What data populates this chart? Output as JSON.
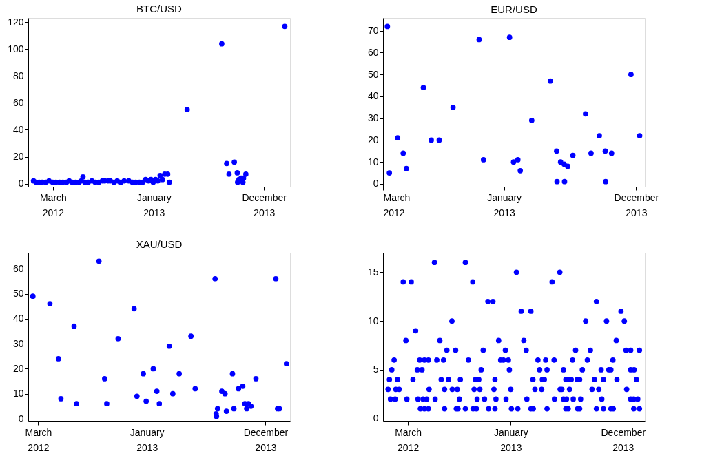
{
  "chart_data": [
    {
      "type": "scatter",
      "title": "BTC/USD",
      "marker": "circle",
      "grid": false,
      "xlim": [
        "2011-12-17",
        "2014-02-18"
      ],
      "ylim": [
        -2.3,
        123.3
      ],
      "xticks": [
        {
          "value": "2012-03-01",
          "label": "March 2012"
        },
        {
          "value": "2013-01-01",
          "label": "January 2013"
        },
        {
          "value": "2013-12-01",
          "label": "December 2013"
        }
      ],
      "yticks": [
        0,
        20,
        40,
        60,
        80,
        100,
        120
      ],
      "series": [
        {
          "color": "#0000ff",
          "x": [
            "2012-01-02",
            "2012-01-10",
            "2012-01-19",
            "2012-01-28",
            "2012-02-08",
            "2012-02-18",
            "2012-02-29",
            "2012-03-10",
            "2012-03-21",
            "2012-03-31",
            "2012-04-11",
            "2012-04-19",
            "2012-04-28",
            "2012-05-09",
            "2012-05-19",
            "2012-05-26",
            "2012-05-31",
            "2012-06-06",
            "2012-06-16",
            "2012-06-27",
            "2012-07-07",
            "2012-07-18",
            "2012-07-29",
            "2012-08-05",
            "2012-08-15",
            "2012-08-22",
            "2012-09-02",
            "2012-09-12",
            "2012-09-23",
            "2012-10-03",
            "2012-10-17",
            "2012-10-28",
            "2012-11-07",
            "2012-11-18",
            "2012-11-28",
            "2012-12-07",
            "2012-12-16",
            "2012-12-23",
            "2012-12-30",
            "2013-01-06",
            "2013-01-13",
            "2013-01-20",
            "2013-01-27",
            "2013-02-03",
            "2013-02-12",
            "2013-02-17",
            "2013-04-12",
            "2013-07-26",
            "2013-08-10",
            "2013-08-17",
            "2013-09-02",
            "2013-09-11",
            "2013-09-12",
            "2013-09-16",
            "2013-09-23",
            "2013-09-28",
            "2013-09-30",
            "2013-10-07",
            "2014-02-02"
          ],
          "values": [
            2,
            1,
            1,
            1,
            1,
            2,
            1,
            1,
            1,
            1,
            1,
            2,
            1,
            1,
            1,
            2,
            5,
            1,
            1,
            2,
            1,
            1,
            2,
            2,
            2,
            2,
            1,
            2,
            1,
            2,
            2,
            1,
            1,
            1,
            1,
            3,
            2,
            3,
            1,
            3,
            2,
            6,
            3,
            7,
            7,
            1,
            55,
            104,
            15,
            7,
            16,
            8,
            1,
            3,
            4,
            1,
            4,
            7,
            117
          ]
        }
      ]
    },
    {
      "type": "scatter",
      "title": "EUR/USD",
      "marker": "circle",
      "grid": false,
      "xlim": [
        "2012-03-01",
        "2013-12-23"
      ],
      "ylim": [
        -1.3,
        75.9
      ],
      "xticks": [
        {
          "value": "2012-03-01",
          "label": "March 2012"
        },
        {
          "value": "2013-01-01",
          "label": "January 2013"
        },
        {
          "value": "2013-12-01",
          "label": "December 2013"
        }
      ],
      "yticks": [
        0,
        10,
        20,
        30,
        40,
        50,
        60,
        70
      ],
      "series": [
        {
          "color": "#0000ff",
          "x": [
            "2012-03-12",
            "2012-03-17",
            "2012-04-07",
            "2012-04-21",
            "2012-04-29",
            "2012-06-11",
            "2012-07-01",
            "2012-07-21",
            "2012-08-25",
            "2012-10-30",
            "2012-11-10",
            "2013-01-15",
            "2013-01-25",
            "2013-02-05",
            "2013-02-11",
            "2013-03-12",
            "2013-04-28",
            "2013-05-14",
            "2013-05-15",
            "2013-05-24",
            "2013-06-02",
            "2013-06-03",
            "2013-06-11",
            "2013-06-24",
            "2013-07-26",
            "2013-08-09",
            "2013-08-30",
            "2013-09-14",
            "2013-09-15",
            "2013-09-30",
            "2013-11-18",
            "2013-12-10"
          ],
          "values": [
            72,
            5,
            21,
            14,
            7,
            44,
            20,
            20,
            35,
            66,
            11,
            67,
            10,
            11,
            6,
            29,
            47,
            15,
            1,
            10,
            9,
            1,
            8,
            13,
            32,
            14,
            22,
            15,
            1,
            14,
            50,
            22
          ]
        }
      ]
    },
    {
      "type": "scatter",
      "title": "XAU/USD",
      "marker": "circle",
      "grid": false,
      "xlim": [
        "2012-02-02",
        "2014-02-08"
      ],
      "ylim": [
        -1.1,
        66.4
      ],
      "xticks": [
        {
          "value": "2012-03-01",
          "label": "March 2012"
        },
        {
          "value": "2013-01-01",
          "label": "January 2013"
        },
        {
          "value": "2013-12-01",
          "label": "December 2013"
        }
      ],
      "yticks": [
        0,
        10,
        20,
        30,
        40,
        50,
        60
      ],
      "series": [
        {
          "color": "#0000ff",
          "x": [
            "2012-02-15",
            "2012-04-03",
            "2012-04-27",
            "2012-05-04",
            "2012-06-10",
            "2012-06-17",
            "2012-08-19",
            "2012-09-04",
            "2012-09-10",
            "2012-10-12",
            "2012-11-26",
            "2012-12-04",
            "2012-12-22",
            "2012-12-30",
            "2013-01-19",
            "2013-01-29",
            "2013-02-05",
            "2013-03-05",
            "2013-03-15",
            "2013-04-02",
            "2013-05-05",
            "2013-05-17",
            "2013-07-12",
            "2013-07-15",
            "2013-07-16",
            "2013-07-19",
            "2013-07-31",
            "2013-08-09",
            "2013-08-13",
            "2013-08-30",
            "2013-09-03",
            "2013-09-16",
            "2013-09-28",
            "2013-10-04",
            "2013-10-09",
            "2013-10-14",
            "2013-10-21",
            "2013-11-04",
            "2013-12-30",
            "2014-01-04",
            "2014-01-09",
            "2014-01-29"
          ],
          "values": [
            49,
            46,
            24,
            8,
            37,
            6,
            63,
            16,
            6,
            32,
            44,
            9,
            18,
            7,
            20,
            11,
            6,
            29,
            10,
            18,
            33,
            12,
            56,
            2,
            1,
            4,
            11,
            10,
            3,
            18,
            4,
            12,
            13,
            6,
            4,
            6,
            5,
            16,
            56,
            4,
            4,
            22
          ]
        }
      ]
    },
    {
      "type": "scatter",
      "marker": "circle",
      "grid": false,
      "xlim": [
        "2011-12-18",
        "2014-02-04"
      ],
      "ylim": [
        -0.3,
        17
      ],
      "xticks": [
        {
          "value": "2012-03-01",
          "label": "March 2012"
        },
        {
          "value": "2013-01-01",
          "label": "January 2013"
        },
        {
          "value": "2013-12-01",
          "label": "December 2013"
        }
      ],
      "yticks": [
        0,
        5,
        10,
        15
      ],
      "series": [
        {
          "color": "#0000ff",
          "x": [
            "2012-04-07",
            "2012-04-19",
            "2012-05-01",
            "2012-06-18",
            "2012-07-23",
            "2012-07-28",
            "2012-08-19",
            "2012-09-11",
            "2012-09-21",
            "2012-10-27",
            "2012-11-15",
            "2013-01-03",
            "2013-01-22",
            "2013-03-02",
            "2013-03-09",
            "2013-04-19",
            "2013-06-14",
            "2013-06-21",
            "2013-07-19",
            "2013-07-25",
            "2013-09-13",
            "2013-10-04",
            "2013-10-26",
            "2013-11-02",
            "2014-01-02",
            "2014-01-19",
            "2012-01-09",
            "2012-01-23",
            "2012-02-27",
            "2012-03-31",
            "2012-04-15",
            "2012-04-26",
            "2012-05-21",
            "2012-08-01",
            "2012-09-23",
            "2012-10-15",
            "2012-11-18",
            "2012-12-18",
            "2013-02-18",
            "2013-05-11",
            "2013-06-07",
            "2013-06-16",
            "2013-07-06",
            "2013-07-28",
            "2013-09-29",
            "2013-12-24",
            "2014-01-02",
            "2014-01-14",
            "2012-01-02",
            "2012-01-25",
            "2012-02-04",
            "2012-05-03",
            "2012-06-18",
            "2012-07-11",
            "2012-07-26",
            "2012-09-14",
            "2012-10-01",
            "2012-11-12",
            "2013-01-01",
            "2013-03-14",
            "2013-04-03",
            "2013-05-28",
            "2013-06-02",
            "2013-06-25",
            "2013-08-31",
            "2013-09-20",
            "2013-12-12",
            "2012-01-06",
            "2012-01-30",
            "2012-03-16",
            "2012-06-08",
            "2012-06-30",
            "2012-08-04",
            "2012-09-18",
            "2012-09-28",
            "2012-11-15",
            "2013-03-08",
            "2013-04-05",
            "2013-04-11",
            "2013-06-14",
            "2013-06-21",
            "2013-06-30",
            "2013-07-18",
            "2013-07-25",
            "2013-09-07",
            "2013-10-04",
            "2013-11-13",
            "2014-01-10",
            "2012-01-13",
            "2012-03-29",
            "2012-04-12",
            "2012-10-05",
            "2012-12-28",
            "2013-03-28",
            "2013-04-19",
            "2013-06-07",
            "2013-08-02",
            "2013-09-27",
            "2013-10-20",
            "2013-10-26",
            "2013-12-24",
            "2014-01-03",
            "2012-01-20",
            "2012-04-05",
            "2012-04-19",
            "2012-05-01",
            "2012-05-26",
            "2012-06-15",
            "2012-08-28",
            "2012-12-02",
            "2012-12-10",
            "2012-12-25",
            "2013-03-23",
            "2013-04-15",
            "2013-05-10",
            "2013-07-04",
            "2013-08-17",
            "2013-11-01",
            "2012-06-25",
            "2012-07-21",
            "2012-10-11",
            "2012-12-16",
            "2013-02-16",
            "2013-07-13",
            "2013-08-26",
            "2013-12-10",
            "2013-12-24",
            "2014-01-19",
            "2012-02-24",
            "2012-06-04",
            "2012-11-26",
            "2013-02-09",
            "2013-11-11",
            "2012-03-24",
            "2012-07-10",
            "2013-08-12",
            "2013-10-13",
            "2013-12-05",
            "2013-02-01",
            "2013-03-02",
            "2013-11-25",
            "2012-10-25",
            "2012-11-09",
            "2013-09-13",
            "2012-02-16",
            "2012-03-11",
            "2012-09-10",
            "2013-05-04",
            "2013-01-18",
            "2013-05-27",
            "2012-05-19",
            "2012-08-19"
          ],
          "values": [
            1,
            1,
            1,
            1,
            1,
            1,
            1,
            1,
            1,
            1,
            1,
            1,
            1,
            1,
            1,
            1,
            1,
            1,
            1,
            1,
            1,
            1,
            1,
            1,
            1,
            1,
            2,
            2,
            2,
            2,
            2,
            2,
            2,
            2,
            2,
            2,
            2,
            2,
            2,
            2,
            2,
            2,
            2,
            2,
            2,
            2,
            2,
            2,
            3,
            3,
            3,
            3,
            3,
            3,
            3,
            3,
            3,
            3,
            3,
            3,
            3,
            3,
            3,
            3,
            3,
            3,
            3,
            4,
            4,
            4,
            4,
            4,
            4,
            4,
            4,
            4,
            4,
            4,
            4,
            4,
            4,
            4,
            4,
            4,
            4,
            4,
            4,
            4,
            5,
            5,
            5,
            5,
            5,
            5,
            5,
            5,
            5,
            5,
            5,
            5,
            5,
            5,
            6,
            6,
            6,
            6,
            6,
            6,
            6,
            6,
            6,
            6,
            6,
            6,
            6,
            6,
            6,
            6,
            7,
            7,
            7,
            7,
            7,
            7,
            7,
            7,
            7,
            7,
            8,
            8,
            8,
            8,
            8,
            9,
            10,
            10,
            10,
            10,
            11,
            11,
            11,
            12,
            12,
            12,
            14,
            14,
            14,
            14,
            15,
            15,
            16,
            16
          ]
        }
      ]
    }
  ]
}
